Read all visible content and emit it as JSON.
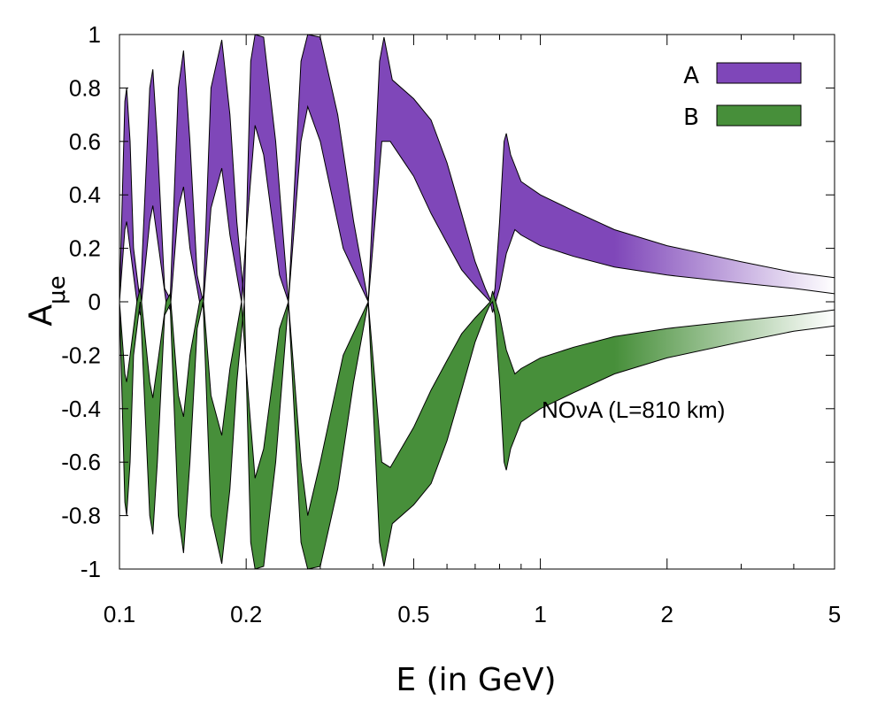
{
  "chart_data": {
    "type": "area",
    "title": "",
    "xlabel": "E (in GeV)",
    "ylabel_main": "A",
    "ylabel_sub": "μe",
    "xscale": "log",
    "xlim": [
      0.1,
      5
    ],
    "ylim": [
      -1,
      1
    ],
    "xticks": [
      {
        "value": 0.1,
        "label": "0.1"
      },
      {
        "value": 0.2,
        "label": "0.2"
      },
      {
        "value": 0.5,
        "label": "0.5"
      },
      {
        "value": 1,
        "label": "1"
      },
      {
        "value": 2,
        "label": "2"
      },
      {
        "value": 5,
        "label": "5"
      }
    ],
    "yticks": [
      {
        "value": 1,
        "label": "1"
      },
      {
        "value": 0.8,
        "label": "0.8"
      },
      {
        "value": 0.6,
        "label": "0.6"
      },
      {
        "value": 0.4,
        "label": "0.4"
      },
      {
        "value": 0.2,
        "label": "0.2"
      },
      {
        "value": 0,
        "label": "0"
      },
      {
        "value": -0.2,
        "label": "-0.2"
      },
      {
        "value": -0.4,
        "label": "-0.4"
      },
      {
        "value": -0.6,
        "label": "-0.6"
      },
      {
        "value": -0.8,
        "label": "-0.8"
      },
      {
        "value": -1,
        "label": "-1"
      }
    ],
    "annotation": "NOνA (L=810 km)",
    "legend_position": "top-right",
    "series": [
      {
        "name": "A",
        "color": "#7f47b9",
        "fade_to": "#ffffff",
        "upper": [
          [
            0.1,
            0.0
          ],
          [
            0.103,
            0.75
          ],
          [
            0.104,
            0.8
          ],
          [
            0.106,
            0.6
          ],
          [
            0.108,
            0.2
          ],
          [
            0.112,
            0.0
          ],
          [
            0.118,
            0.8
          ],
          [
            0.12,
            0.87
          ],
          [
            0.123,
            0.6
          ],
          [
            0.128,
            0.05
          ],
          [
            0.132,
            0.01
          ],
          [
            0.138,
            0.8
          ],
          [
            0.142,
            0.94
          ],
          [
            0.147,
            0.6
          ],
          [
            0.153,
            0.1
          ],
          [
            0.158,
            0.0
          ],
          [
            0.165,
            0.8
          ],
          [
            0.175,
            0.98
          ],
          [
            0.183,
            0.7
          ],
          [
            0.19,
            0.3
          ],
          [
            0.198,
            0.0
          ],
          [
            0.205,
            0.9
          ],
          [
            0.21,
            1.0
          ],
          [
            0.22,
            0.99
          ],
          [
            0.235,
            0.6
          ],
          [
            0.252,
            0.0
          ],
          [
            0.27,
            0.9
          ],
          [
            0.28,
            1.0
          ],
          [
            0.3,
            0.99
          ],
          [
            0.33,
            0.7
          ],
          [
            0.36,
            0.3
          ],
          [
            0.39,
            0.0
          ],
          [
            0.415,
            0.9
          ],
          [
            0.425,
            0.99
          ],
          [
            0.445,
            0.83
          ],
          [
            0.5,
            0.76
          ],
          [
            0.55,
            0.68
          ],
          [
            0.6,
            0.52
          ],
          [
            0.65,
            0.33
          ],
          [
            0.7,
            0.15
          ],
          [
            0.74,
            0.05
          ],
          [
            0.76,
            0.01
          ],
          [
            0.77,
            0.0
          ],
          [
            0.78,
            0.05
          ],
          [
            0.8,
            0.3
          ],
          [
            0.82,
            0.6
          ],
          [
            0.83,
            0.63
          ],
          [
            0.85,
            0.55
          ],
          [
            0.9,
            0.45
          ],
          [
            1.0,
            0.4
          ],
          [
            1.2,
            0.34
          ],
          [
            1.5,
            0.27
          ],
          [
            2.0,
            0.21
          ],
          [
            3.0,
            0.15
          ],
          [
            4.0,
            0.11
          ],
          [
            5.0,
            0.09
          ]
        ],
        "lower": [
          [
            0.1,
            0.0
          ],
          [
            0.103,
            0.27
          ],
          [
            0.104,
            0.3
          ],
          [
            0.106,
            0.2
          ],
          [
            0.11,
            0.0
          ],
          [
            0.112,
            -0.05
          ],
          [
            0.118,
            0.3
          ],
          [
            0.12,
            0.36
          ],
          [
            0.124,
            0.2
          ],
          [
            0.129,
            0.0
          ],
          [
            0.132,
            -0.03
          ],
          [
            0.138,
            0.35
          ],
          [
            0.142,
            0.43
          ],
          [
            0.147,
            0.2
          ],
          [
            0.155,
            0.0
          ],
          [
            0.158,
            -0.02
          ],
          [
            0.165,
            0.35
          ],
          [
            0.175,
            0.5
          ],
          [
            0.183,
            0.25
          ],
          [
            0.195,
            0.0
          ],
          [
            0.2,
            0.25
          ],
          [
            0.21,
            0.66
          ],
          [
            0.22,
            0.55
          ],
          [
            0.24,
            0.1
          ],
          [
            0.252,
            0.0
          ],
          [
            0.27,
            0.6
          ],
          [
            0.28,
            0.73
          ],
          [
            0.3,
            0.6
          ],
          [
            0.34,
            0.2
          ],
          [
            0.39,
            0.0
          ],
          [
            0.42,
            0.6
          ],
          [
            0.44,
            0.6
          ],
          [
            0.5,
            0.47
          ],
          [
            0.55,
            0.33
          ],
          [
            0.6,
            0.22
          ],
          [
            0.65,
            0.12
          ],
          [
            0.7,
            0.06
          ],
          [
            0.74,
            0.02
          ],
          [
            0.76,
            0.0
          ],
          [
            0.77,
            -0.04
          ],
          [
            0.8,
            0.05
          ],
          [
            0.83,
            0.18
          ],
          [
            0.87,
            0.27
          ],
          [
            0.9,
            0.25
          ],
          [
            1.0,
            0.21
          ],
          [
            1.2,
            0.17
          ],
          [
            1.5,
            0.13
          ],
          [
            2.0,
            0.1
          ],
          [
            3.0,
            0.07
          ],
          [
            4.0,
            0.05
          ],
          [
            5.0,
            0.03
          ]
        ]
      },
      {
        "name": "B",
        "color": "#478f3a",
        "fade_to": "#ffffff",
        "upper": [
          [
            0.1,
            0.0
          ],
          [
            0.103,
            -0.27
          ],
          [
            0.104,
            -0.3
          ],
          [
            0.106,
            -0.2
          ],
          [
            0.11,
            0.0
          ],
          [
            0.112,
            0.05
          ],
          [
            0.118,
            -0.3
          ],
          [
            0.12,
            -0.36
          ],
          [
            0.124,
            -0.2
          ],
          [
            0.129,
            0.0
          ],
          [
            0.132,
            0.03
          ],
          [
            0.138,
            -0.35
          ],
          [
            0.142,
            -0.43
          ],
          [
            0.147,
            -0.2
          ],
          [
            0.155,
            0.0
          ],
          [
            0.158,
            0.02
          ],
          [
            0.165,
            -0.35
          ],
          [
            0.175,
            -0.5
          ],
          [
            0.183,
            -0.25
          ],
          [
            0.195,
            0.0
          ],
          [
            0.2,
            -0.25
          ],
          [
            0.21,
            -0.66
          ],
          [
            0.22,
            -0.55
          ],
          [
            0.24,
            -0.1
          ],
          [
            0.252,
            0.0
          ],
          [
            0.27,
            -0.6
          ],
          [
            0.28,
            -0.8
          ],
          [
            0.3,
            -0.6
          ],
          [
            0.34,
            -0.2
          ],
          [
            0.39,
            0.0
          ],
          [
            0.42,
            -0.6
          ],
          [
            0.44,
            -0.62
          ],
          [
            0.5,
            -0.47
          ],
          [
            0.55,
            -0.33
          ],
          [
            0.6,
            -0.22
          ],
          [
            0.65,
            -0.12
          ],
          [
            0.7,
            -0.06
          ],
          [
            0.74,
            -0.02
          ],
          [
            0.76,
            0.0
          ],
          [
            0.77,
            0.04
          ],
          [
            0.8,
            -0.05
          ],
          [
            0.83,
            -0.18
          ],
          [
            0.87,
            -0.27
          ],
          [
            0.9,
            -0.25
          ],
          [
            1.0,
            -0.21
          ],
          [
            1.2,
            -0.17
          ],
          [
            1.5,
            -0.13
          ],
          [
            2.0,
            -0.1
          ],
          [
            3.0,
            -0.07
          ],
          [
            4.0,
            -0.05
          ],
          [
            5.0,
            -0.03
          ]
        ],
        "lower": [
          [
            0.1,
            0.0
          ],
          [
            0.103,
            -0.75
          ],
          [
            0.104,
            -0.8
          ],
          [
            0.106,
            -0.6
          ],
          [
            0.108,
            -0.2
          ],
          [
            0.112,
            0.0
          ],
          [
            0.118,
            -0.8
          ],
          [
            0.12,
            -0.87
          ],
          [
            0.123,
            -0.6
          ],
          [
            0.128,
            -0.05
          ],
          [
            0.132,
            -0.01
          ],
          [
            0.138,
            -0.8
          ],
          [
            0.142,
            -0.94
          ],
          [
            0.147,
            -0.6
          ],
          [
            0.153,
            -0.1
          ],
          [
            0.158,
            0.0
          ],
          [
            0.165,
            -0.8
          ],
          [
            0.175,
            -0.98
          ],
          [
            0.183,
            -0.7
          ],
          [
            0.19,
            -0.3
          ],
          [
            0.198,
            0.0
          ],
          [
            0.205,
            -0.9
          ],
          [
            0.21,
            -1.0
          ],
          [
            0.22,
            -0.99
          ],
          [
            0.235,
            -0.6
          ],
          [
            0.252,
            0.0
          ],
          [
            0.27,
            -0.9
          ],
          [
            0.28,
            -1.0
          ],
          [
            0.3,
            -0.99
          ],
          [
            0.33,
            -0.7
          ],
          [
            0.36,
            -0.3
          ],
          [
            0.39,
            0.0
          ],
          [
            0.415,
            -0.9
          ],
          [
            0.425,
            -0.99
          ],
          [
            0.445,
            -0.83
          ],
          [
            0.5,
            -0.76
          ],
          [
            0.55,
            -0.68
          ],
          [
            0.6,
            -0.52
          ],
          [
            0.65,
            -0.33
          ],
          [
            0.7,
            -0.15
          ],
          [
            0.74,
            -0.05
          ],
          [
            0.76,
            -0.01
          ],
          [
            0.77,
            0.0
          ],
          [
            0.78,
            -0.05
          ],
          [
            0.8,
            -0.3
          ],
          [
            0.82,
            -0.6
          ],
          [
            0.83,
            -0.63
          ],
          [
            0.85,
            -0.55
          ],
          [
            0.9,
            -0.45
          ],
          [
            1.0,
            -0.4
          ],
          [
            1.2,
            -0.34
          ],
          [
            1.5,
            -0.27
          ],
          [
            2.0,
            -0.21
          ],
          [
            3.0,
            -0.15
          ],
          [
            4.0,
            -0.11
          ],
          [
            5.0,
            -0.09
          ]
        ]
      }
    ]
  }
}
